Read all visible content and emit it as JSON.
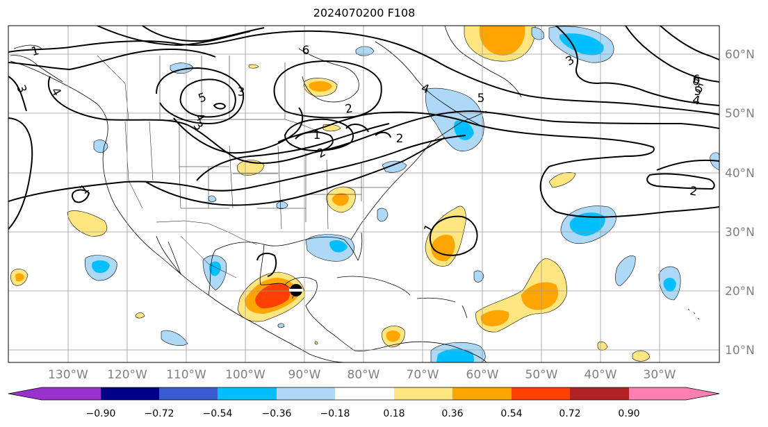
{
  "title": "2024070200 F108",
  "longitude_labels": [
    "130°W",
    "120°W",
    "110°W",
    "100°W",
    "90°W",
    "80°W",
    "70°W",
    "60°W",
    "50°W",
    "40°W",
    "30°W"
  ],
  "latitude_labels": [
    "60°N",
    "50°N",
    "40°N",
    "30°N",
    "20°N",
    "10°N"
  ],
  "colorbar": {
    "tick_labels": [
      "−0.90",
      "−0.72",
      "−0.54",
      "−0.36",
      "−0.18",
      "0.18",
      "0.36",
      "0.54",
      "0.72",
      "0.90"
    ],
    "colors": [
      "#9932cc",
      "#00008b",
      "#3a5bcf",
      "#00bfff",
      "#add8f6",
      "#ffffff",
      "#ffe680",
      "#ffa500",
      "#ff4000",
      "#b22222",
      "#ff80b0"
    ]
  },
  "contour_labels": [
    "1",
    "3",
    "4",
    "6",
    "5",
    "2",
    "5",
    "6",
    "4",
    "3",
    "2",
    "1",
    "2",
    "1",
    "4",
    "5",
    "3",
    "6",
    "5",
    "4",
    "2",
    "3",
    "1"
  ],
  "fill_colors": {
    "light_blue": "#add8f6",
    "blue": "#00bfff",
    "yellow": "#ffe680",
    "orange": "#ffa500",
    "red": "#ff4000"
  },
  "marker": "tropical-cyclone-symbol"
}
